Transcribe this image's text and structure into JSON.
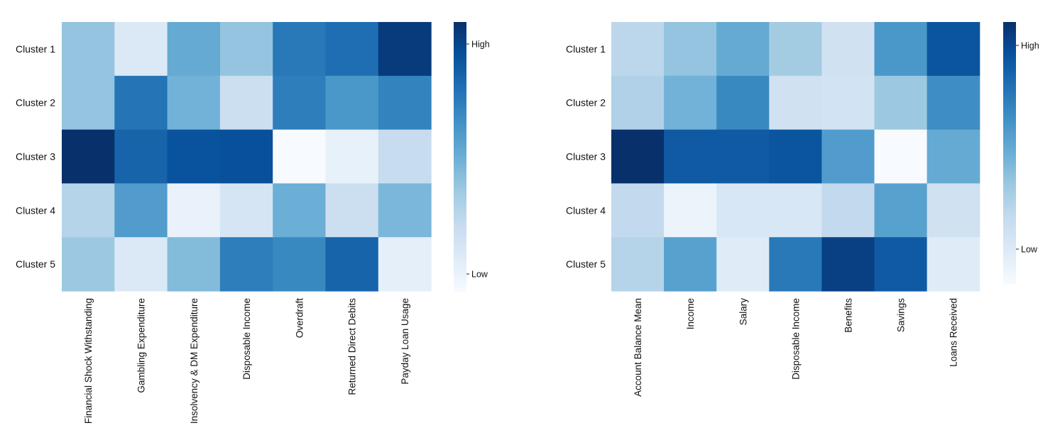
{
  "chart_data": [
    {
      "type": "heatmap",
      "title": "",
      "rows": [
        "Cluster 1",
        "Cluster 2",
        "Cluster 3",
        "Cluster 4",
        "Cluster 5"
      ],
      "columns": [
        "Financial Shock Withstanding",
        "Gambling Expenditure",
        "Insolvency & DM Expenditure",
        "Disposable Income",
        "Overdraft",
        "Returned Direct Debits",
        "Payday Loan Usage"
      ],
      "values": [
        [
          0.4,
          0.14,
          0.52,
          0.4,
          0.72,
          0.76,
          0.96
        ],
        [
          0.4,
          0.74,
          0.48,
          0.22,
          0.7,
          0.6,
          0.68
        ],
        [
          1.0,
          0.8,
          0.87,
          0.88,
          0.0,
          0.08,
          0.24
        ],
        [
          0.3,
          0.58,
          0.07,
          0.17,
          0.5,
          0.22,
          0.46
        ],
        [
          0.38,
          0.14,
          0.44,
          0.7,
          0.66,
          0.8,
          0.09
        ]
      ],
      "colorbar": {
        "high_label": "High",
        "low_label": "Low",
        "cmap": "Blues",
        "range": [
          0,
          1
        ]
      }
    },
    {
      "type": "heatmap",
      "title": "",
      "rows": [
        "Cluster 1",
        "Cluster 2",
        "Cluster 3",
        "Cluster 4",
        "Cluster 5"
      ],
      "columns": [
        "Account Balance Mean",
        "Income",
        "Salary",
        "Disposable Income",
        "Benefits",
        "Savings",
        "Loans Received"
      ],
      "values": [
        [
          0.28,
          0.4,
          0.52,
          0.36,
          0.2,
          0.6,
          0.86
        ],
        [
          0.32,
          0.48,
          0.66,
          0.2,
          0.19,
          0.38,
          0.64
        ],
        [
          1.0,
          0.84,
          0.84,
          0.86,
          0.58,
          0.0,
          0.52
        ],
        [
          0.26,
          0.06,
          0.16,
          0.16,
          0.26,
          0.56,
          0.2
        ],
        [
          0.3,
          0.56,
          0.12,
          0.72,
          0.94,
          0.84,
          0.12
        ]
      ],
      "colorbar": {
        "high_label": "High",
        "low_label": "Low",
        "cmap": "Blues",
        "range": [
          0,
          1
        ]
      }
    }
  ],
  "colors": {
    "cmap_stops": [
      "#f7fbff",
      "#deebf7",
      "#c6dbef",
      "#9ecae1",
      "#6baed6",
      "#4292c6",
      "#2171b5",
      "#08519c",
      "#08306b"
    ]
  }
}
